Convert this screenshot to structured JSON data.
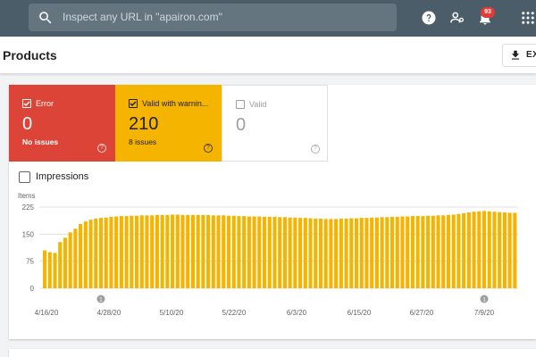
{
  "topbar": {
    "search_placeholder": "Inspect any URL in \"apairon.com\"",
    "notification_count": "93",
    "icons": [
      "search-icon",
      "help-icon",
      "manage-users-icon",
      "notifications-icon",
      "apps-grid-icon"
    ]
  },
  "header": {
    "title": "Products",
    "export_label": "EX"
  },
  "tiles": {
    "error": {
      "label": "Error",
      "value": "0",
      "sub": "No issues"
    },
    "warning": {
      "label": "Valid with warnin...",
      "value": "210",
      "sub": "8 issues"
    },
    "valid": {
      "label": "Valid",
      "value": "0"
    }
  },
  "impressions": {
    "label": "Impressions"
  },
  "colors": {
    "error": "#db4437",
    "warning": "#f4b400",
    "topbar": "#4a5d69",
    "bar": "#f4b400"
  },
  "chart_data": {
    "type": "bar",
    "ylabel": "Items",
    "yticks": [
      0,
      75,
      150,
      225
    ],
    "ylim": [
      0,
      225
    ],
    "xticks": [
      "4/16/20",
      "4/28/20",
      "5/10/20",
      "5/22/20",
      "6/3/20",
      "6/15/20",
      "6/27/20",
      "7/9/20"
    ],
    "annotations": [
      {
        "label": "1",
        "bar_index": 11
      },
      {
        "label": "1",
        "bar_index": 86
      }
    ],
    "values": [
      105,
      100,
      98,
      128,
      140,
      155,
      165,
      178,
      185,
      190,
      193,
      195,
      196,
      198,
      199,
      200,
      200,
      201,
      201,
      202,
      202,
      202,
      203,
      203,
      203,
      204,
      204,
      203,
      203,
      203,
      203,
      203,
      203,
      202,
      202,
      202,
      201,
      201,
      200,
      200,
      199,
      199,
      199,
      198,
      198,
      198,
      197,
      197,
      196,
      196,
      195,
      195,
      194,
      193,
      193,
      192,
      192,
      192,
      193,
      193,
      194,
      194,
      195,
      195,
      196,
      196,
      197,
      197,
      198,
      198,
      199,
      199,
      200,
      200,
      200,
      201,
      201,
      202,
      202,
      203,
      204,
      206,
      208,
      210,
      212,
      213,
      214,
      213,
      212,
      211,
      210,
      209,
      209
    ]
  }
}
